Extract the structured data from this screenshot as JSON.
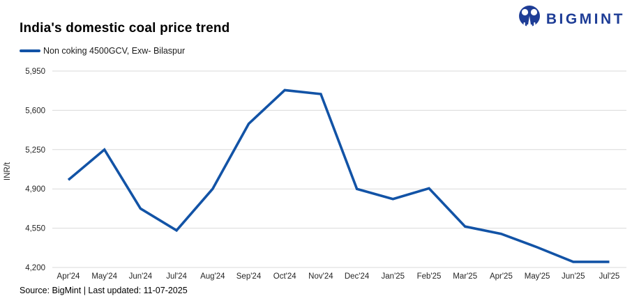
{
  "header": {
    "title": "India's domestic coal price trend",
    "brand": "BIGMINT"
  },
  "legend": {
    "label": "Non coking 4500GCV, Exw- Bilaspur"
  },
  "footer": {
    "source": "Source: BigMint | Last updated: 11-07-2025"
  },
  "colors": {
    "line": "#1253a6",
    "brand_blue": "#1e3d96",
    "gridline": "#d9d9d9",
    "tick_text": "#262626"
  },
  "chart_data": {
    "type": "line",
    "title": "India's domestic coal price trend",
    "categories": [
      "Apr'24",
      "May'24",
      "Jun'24",
      "Jul'24",
      "Aug'24",
      "Sep'24",
      "Oct'24",
      "Nov'24",
      "Dec'24",
      "Jan'25",
      "Feb'25",
      "Mar'25",
      "Apr'25",
      "May'25",
      "Jun'25",
      "Jul'25"
    ],
    "series": [
      {
        "name": "Non coking 4500GCV, Exw- Bilaspur",
        "values": [
          4980,
          5250,
          4725,
          4530,
          4900,
          5480,
          5780,
          5745,
          4900,
          4810,
          4905,
          4565,
          4500,
          4380,
          4250,
          4250
        ]
      }
    ],
    "xlabel": "",
    "ylabel": "INR/t",
    "ylim": [
      4200,
      5950
    ],
    "ytick_step": 350,
    "ytick_labels": [
      "4,200",
      "4,550",
      "4,900",
      "5,250",
      "5,600",
      "5,950"
    ],
    "grid": "horizontal-only",
    "legend_position": "top-left"
  }
}
